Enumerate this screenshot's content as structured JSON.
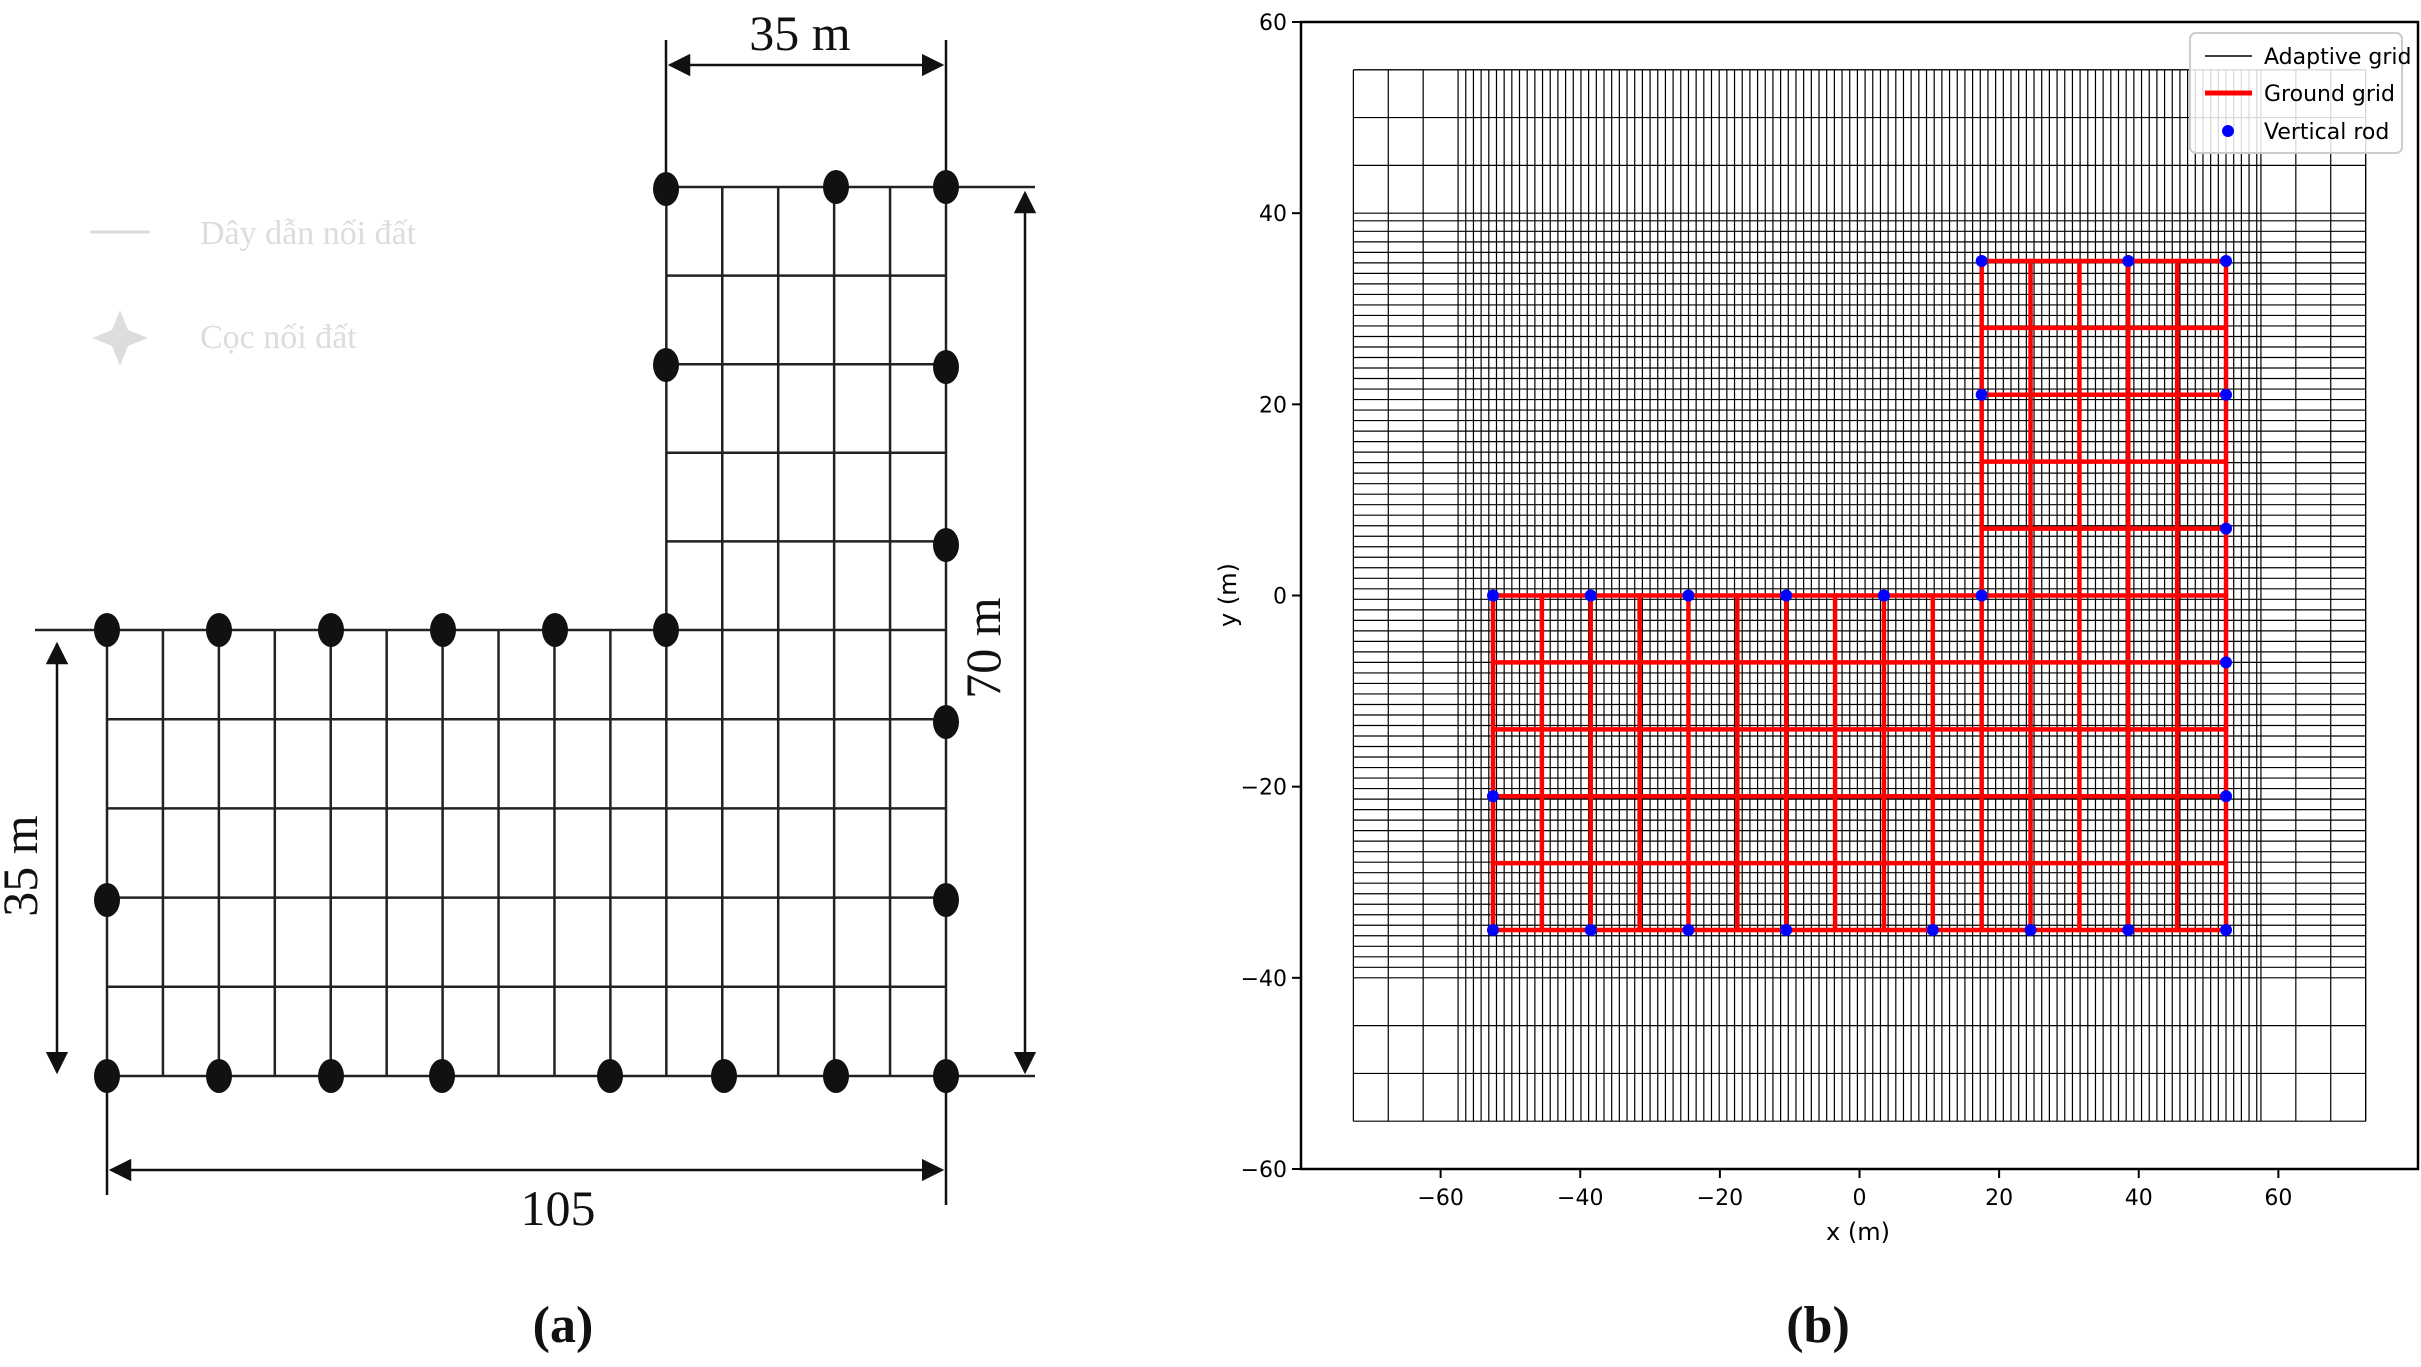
{
  "panel_a": {
    "top_dimension": "35 m",
    "right_dimension": "70 m",
    "left_dimension": "35 m",
    "bottom_dimension": "105",
    "faint_legend": [
      {
        "text": "Dây dẫn nối đất",
        "symbol": "line"
      },
      {
        "text": "Cọc nối đất",
        "symbol": "rod"
      }
    ],
    "caption": "(a)"
  },
  "panel_b": {
    "caption": "(b)",
    "chart_data": {
      "type": "grid_plot",
      "title": "",
      "xlabel": "x (m)",
      "ylabel": "y (m)",
      "xlim": [
        -80,
        80
      ],
      "ylim": [
        -60,
        60
      ],
      "xticks": [
        -60,
        -40,
        -20,
        0,
        20,
        40,
        60
      ],
      "yticks": [
        -60,
        -40,
        -20,
        0,
        20,
        40,
        60
      ],
      "legend_position": "top-right",
      "legend": [
        {
          "label": "Adaptive grid",
          "color": "#000000",
          "marker": "line"
        },
        {
          "label": "Ground grid",
          "color": "#ff0000",
          "marker": "thick-line"
        },
        {
          "label": "Vertical rod",
          "color": "#0000ff",
          "marker": "dot"
        }
      ],
      "adaptive_grid": {
        "extent_x": [
          -72.5,
          72.5
        ],
        "extent_y": [
          -55,
          55
        ],
        "coarse_spacing": 5,
        "fine_spacing": 1.1
      },
      "ground_grid": {
        "outline": [
          [
            -52.5,
            -35
          ],
          [
            52.5,
            -35
          ],
          [
            52.5,
            35
          ],
          [
            17.5,
            35
          ],
          [
            17.5,
            0
          ],
          [
            -52.5,
            0
          ]
        ],
        "vertical_lines_lower": [
          -52.5,
          -45.5,
          -38.5,
          -31.5,
          -24.5,
          -17.5,
          -10.5,
          -3.5,
          3.5,
          10.5,
          17.5,
          24.5,
          31.5,
          38.5,
          45.5,
          52.5
        ],
        "vertical_lines_upper": [
          17.5,
          24.5,
          31.5,
          38.5,
          45.5,
          52.5
        ],
        "horizontal_lines_lower": [
          -35,
          -28,
          -21,
          -14,
          -7,
          0
        ],
        "horizontal_lines_upper": [
          7,
          14,
          21,
          28,
          35
        ]
      },
      "vertical_rods": [
        [
          -52.5,
          0
        ],
        [
          -38.5,
          0
        ],
        [
          -24.5,
          0
        ],
        [
          -10.5,
          0
        ],
        [
          3.5,
          0
        ],
        [
          17.5,
          0
        ],
        [
          17.5,
          21
        ],
        [
          17.5,
          35
        ],
        [
          38.5,
          35
        ],
        [
          52.5,
          35
        ],
        [
          52.5,
          21
        ],
        [
          52.5,
          7
        ],
        [
          52.5,
          -7
        ],
        [
          52.5,
          -21
        ],
        [
          52.5,
          -35
        ],
        [
          38.5,
          -35
        ],
        [
          24.5,
          -35
        ],
        [
          10.5,
          -35
        ],
        [
          -10.5,
          -35
        ],
        [
          -24.5,
          -35
        ],
        [
          -38.5,
          -35
        ],
        [
          -52.5,
          -35
        ],
        [
          -52.5,
          -21
        ]
      ]
    }
  }
}
